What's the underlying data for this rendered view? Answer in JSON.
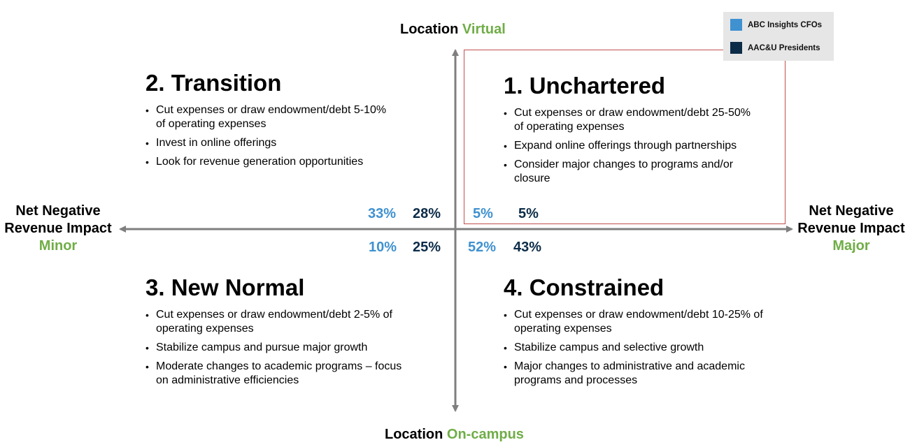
{
  "axes": {
    "top": {
      "prefix": "Location",
      "value": "Virtual"
    },
    "bottom": {
      "prefix": "Location",
      "value": "On-campus"
    },
    "left": {
      "line1": "Net Negative",
      "line2": "Revenue Impact",
      "value": "Minor"
    },
    "right": {
      "line1": "Net Negative",
      "line2": "Revenue Impact",
      "value": "Major"
    }
  },
  "legend": {
    "items": [
      {
        "label": "ABC Insights CFOs",
        "color": "#3f91d0"
      },
      {
        "label": "AAC&U Presidents",
        "color": "#0c2c48"
      }
    ]
  },
  "quadrants": {
    "q1": {
      "title": "1.  Unchartered",
      "bullets": [
        "Cut expenses or draw endowment/debt 25-50% of operating expenses",
        "Expand online offerings through partnerships",
        "Consider major changes to programs and/or closure"
      ],
      "cfo_pct": "5%",
      "pres_pct": "5%"
    },
    "q2": {
      "title": "2. Transition",
      "bullets": [
        "Cut expenses or draw endowment/debt  5-10% of operating expenses",
        "Invest in online offerings",
        "Look for revenue generation opportunities"
      ],
      "cfo_pct": "33%",
      "pres_pct": "28%"
    },
    "q3": {
      "title": "3. New Normal",
      "bullets": [
        "Cut expenses or draw endowment/debt 2-5% of operating expenses",
        "Stabilize campus and pursue major growth",
        "Moderate changes to academic programs – focus on administrative efficiencies"
      ],
      "cfo_pct": "10%",
      "pres_pct": "25%"
    },
    "q4": {
      "title": "4. Constrained",
      "bullets": [
        "Cut expenses or draw endowment/debt 10-25% of operating expenses",
        "Stabilize campus and selective growth",
        "Major changes to administrative and academic programs and processes"
      ],
      "cfo_pct": "52%",
      "pres_pct": "43%"
    }
  },
  "colors": {
    "axis": "#7f7f7f",
    "highlight": "#c0504d",
    "accent_green": "#70ad47"
  }
}
